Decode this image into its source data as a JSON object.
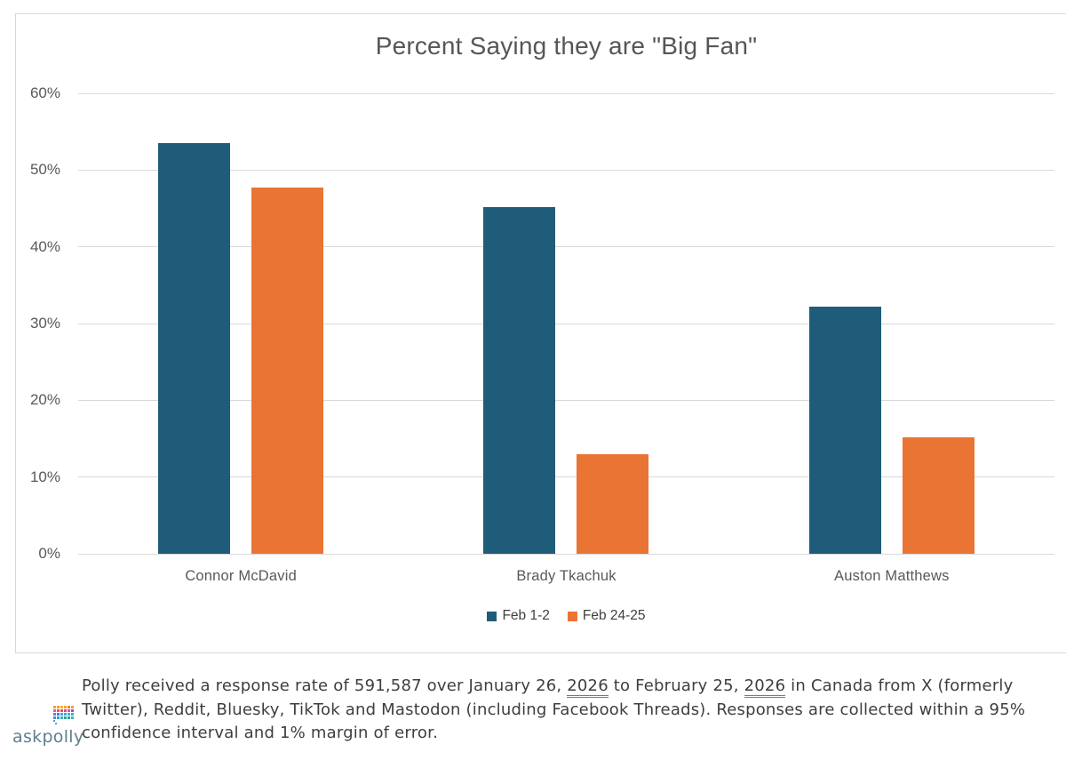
{
  "chart_data": {
    "type": "bar",
    "title": "Percent Saying they are \"Big Fan\"",
    "categories": [
      "Connor McDavid",
      "Brady Tkachuk",
      "Auston Matthews"
    ],
    "series": [
      {
        "name": "Feb 1-2",
        "color": "#1f5c7a",
        "values": [
          53.5,
          45.2,
          32.2
        ]
      },
      {
        "name": "Feb 24-25",
        "color": "#ea7434",
        "values": [
          47.7,
          13.0,
          15.2
        ]
      }
    ],
    "xlabel": "",
    "ylabel": "",
    "ylim": [
      0,
      60
    ],
    "ytick_labels": [
      "60%",
      "50%",
      "40%",
      "30%",
      "20%",
      "10%",
      "0%"
    ],
    "grid": true,
    "legend_position": "bottom",
    "gridline_color": "#d9d9d9",
    "text_color": "#595959"
  },
  "footer": {
    "line1_pre": "Polly received a response rate of 591,587 over January 26, ",
    "year1": "2026",
    "line1_mid": " to February 25, ",
    "year2": "2026",
    "line1_post": " in Canada from X (formerly",
    "line2": "Twitter), Reddit, Bluesky, TikTok and Mastodon (including Facebook Threads). Responses are collected within a 95%",
    "line3": "confidence interval and 1% margin of error.",
    "grammar_underline_color": "#4f83c2"
  },
  "brand": {
    "logo_text": "askpolly",
    "logo_text_color": "#5e7f8f",
    "icon_rows": [
      [
        "#f5a02f",
        "#f5a02f",
        "#f7b32b",
        "#f5a02f",
        "#f08c2e",
        "#f5a02f"
      ],
      [
        "#ec5f67",
        "#e84d6f",
        "#e84d6f",
        "#d84a8a",
        "#b05ccc",
        "#a14fbf"
      ],
      [
        "#7a6fd6",
        "#6a66d0",
        "#4aa3dd",
        "#4aa3dd",
        "#35b6c9",
        "#35b6c9"
      ],
      [
        "#2f9bd6",
        "#2f9bd6",
        "#35b6c9",
        "#2aa198",
        "#2aa198",
        "#35b6c9"
      ]
    ],
    "icon_tail_color": "#4aa3dd"
  }
}
